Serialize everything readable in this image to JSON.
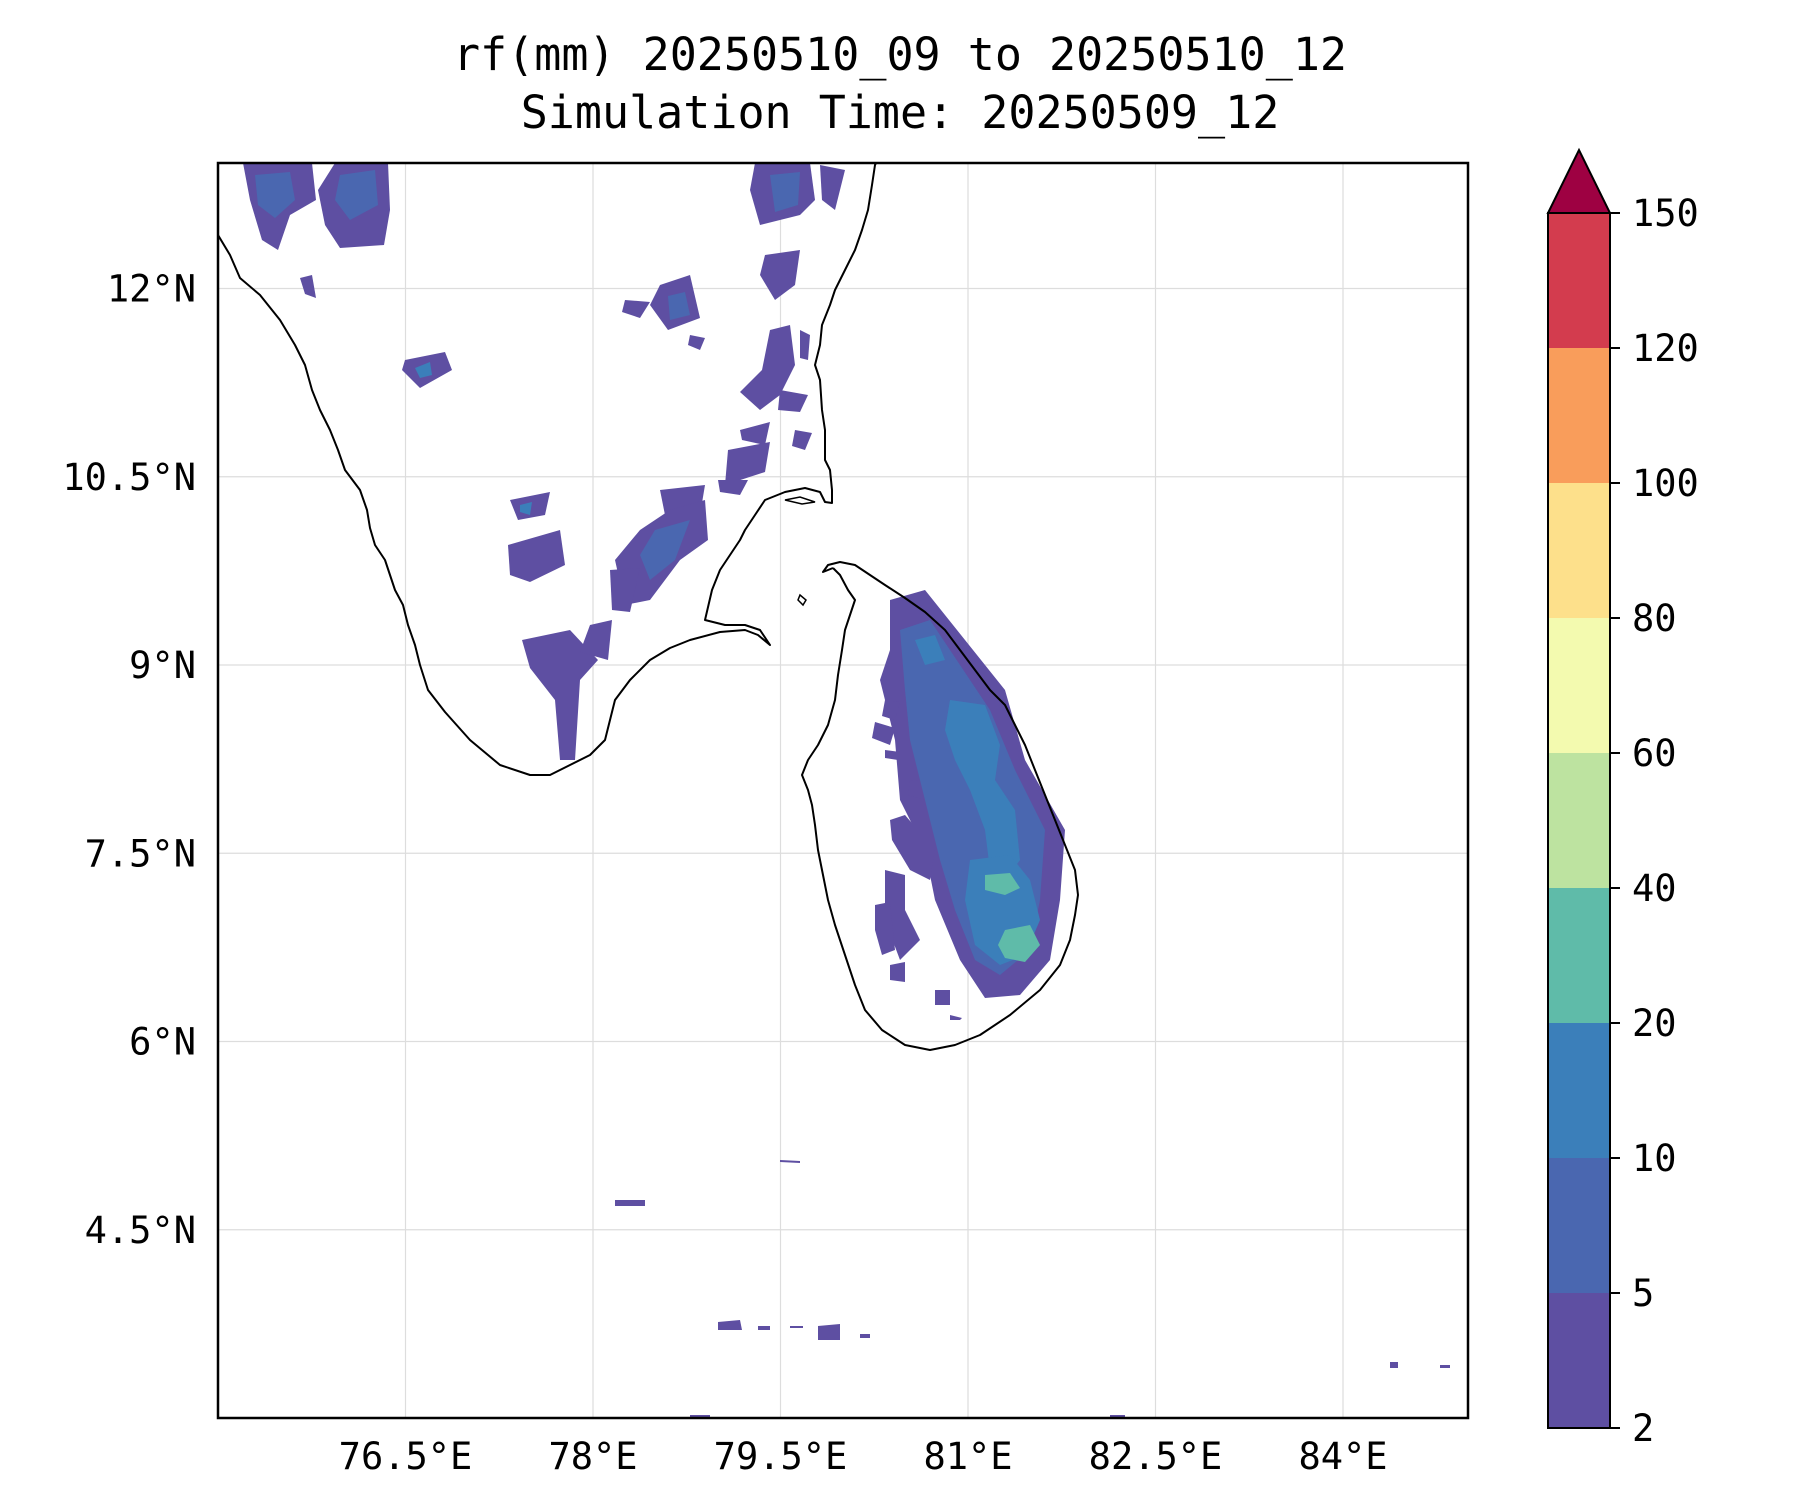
{
  "title": {
    "line1": "rf(mm) 20250510_09 to 20250510_12",
    "line2": "Simulation Time: 20250509_12"
  },
  "map": {
    "projection": "PlateCarree",
    "extent": {
      "lon": [
        75.0,
        85.0
      ],
      "lat": [
        3.0,
        13.0
      ]
    },
    "gridlines": true,
    "x_ticks": [
      {
        "value": 76.5,
        "label": "76.5°E"
      },
      {
        "value": 78.0,
        "label": "78°E"
      },
      {
        "value": 79.5,
        "label": "79.5°E"
      },
      {
        "value": 81.0,
        "label": "81°E"
      },
      {
        "value": 82.5,
        "label": "82.5°E"
      },
      {
        "value": 84.0,
        "label": "84°E"
      }
    ],
    "y_ticks": [
      {
        "value": 12.0,
        "label": "12°N"
      },
      {
        "value": 10.5,
        "label": "10.5°N"
      },
      {
        "value": 9.0,
        "label": "9°N"
      },
      {
        "value": 7.5,
        "label": "7.5°N"
      },
      {
        "value": 6.0,
        "label": "6°N"
      },
      {
        "value": 4.5,
        "label": "4.5°N"
      }
    ]
  },
  "colorbar": {
    "extend": "max",
    "extend_color": "#9e0142",
    "levels": [
      {
        "value": 2,
        "label": "2"
      },
      {
        "value": 5,
        "label": "5"
      },
      {
        "value": 10,
        "label": "10"
      },
      {
        "value": 20,
        "label": "20"
      },
      {
        "value": 40,
        "label": "40"
      },
      {
        "value": 60,
        "label": "60"
      },
      {
        "value": 80,
        "label": "80"
      },
      {
        "value": 100,
        "label": "100"
      },
      {
        "value": 120,
        "label": "120"
      },
      {
        "value": 150,
        "label": "150"
      }
    ],
    "colors": [
      "#5e4fa2",
      "#4a67b0",
      "#3b7fba",
      "#5fbba9",
      "#bde3a0",
      "#f3faaf",
      "#fde08b",
      "#f99d5b",
      "#d33c4e"
    ]
  },
  "coastline_color": "#000000",
  "gridline_color": "#dddddd"
}
